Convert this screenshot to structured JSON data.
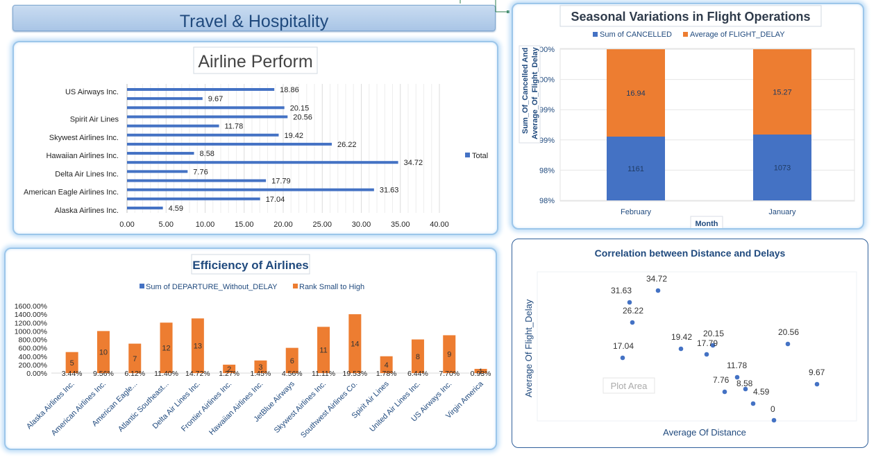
{
  "banner": {
    "title": "Travel & Hospitality"
  },
  "colors": {
    "blue": "#4472c4",
    "orange": "#ed7d31",
    "text": "#1f497d"
  },
  "charts": {
    "airline": {
      "title": "Airline Perform",
      "legend": "Total",
      "x_ticks": [
        "0.00",
        "5.00",
        "10.00",
        "15.00",
        "20.00",
        "25.00",
        "30.00",
        "35.00",
        "40.00"
      ],
      "labels": [
        "US Airways Inc.",
        "Spirit Air Lines",
        "Skywest Airlines Inc.",
        "Hawaiian Airlines Inc.",
        "Delta Air Lines Inc.",
        "American Eagle Airlines Inc.",
        "Alaska Airlines Inc."
      ]
    },
    "seasonal": {
      "title": "Seasonal Variations in Flight Operations",
      "legend_cancelled": "Sum of CANCELLED",
      "legend_delay": "Average of FLIGHT_DELAY",
      "y_ticks": [
        "100%",
        "100%",
        "99%",
        "99%",
        "98%",
        "98%"
      ],
      "y_title": "Sum_Of_Cancelled And Average_Of_Flight_Delay",
      "x_title": "Month"
    },
    "efficiency": {
      "title": "Efficiency of Airlines",
      "legend_departure": "Sum of DEPARTURE_Without_DELAY",
      "legend_rank": "Rank Small to High",
      "y_ticks": [
        "1600.00%",
        "1400.00%",
        "1200.00%",
        "1000.00%",
        "800.00%",
        "600.00%",
        "400.00%",
        "200.00%",
        "0.00%"
      ]
    },
    "correlation": {
      "title": "Correlation between Distance and Delays",
      "x_title": "Average Of Distance",
      "y_title": "Average Of Flight_Delay",
      "plot_area_label": "Plot Area"
    }
  },
  "chart_data": [
    {
      "type": "bar",
      "orientation": "horizontal",
      "title": "Airline Perform",
      "series": [
        {
          "name": "Total",
          "values": [
            18.86,
            9.67,
            20.15,
            20.56,
            11.78,
            19.42,
            26.22,
            8.58,
            34.72,
            7.76,
            17.79,
            31.63,
            17.04,
            4.59
          ]
        }
      ],
      "category_labels_visible": [
        "US Airways Inc.",
        "",
        "",
        "Spirit Air Lines",
        "",
        "Skywest Airlines Inc.",
        "",
        "Hawaiian Airlines Inc.",
        "",
        "Delta Air Lines Inc.",
        "",
        "American Eagle Airlines Inc.",
        "",
        "Alaska Airlines Inc."
      ],
      "xlim": [
        0,
        40
      ],
      "legend": "right"
    },
    {
      "type": "bar",
      "stacked": "percent",
      "title": "Seasonal Variations in Flight Operations",
      "categories": [
        "February",
        "January"
      ],
      "series": [
        {
          "name": "Sum of CANCELLED",
          "values": [
            1161,
            1073
          ]
        },
        {
          "name": "Average of FLIGHT_DELAY",
          "values": [
            16.94,
            15.27
          ]
        }
      ],
      "xlabel": "Month",
      "ylabel": "Sum_Of_Cancelled And Average_Of_Flight_Delay",
      "legend": "top"
    },
    {
      "type": "bar",
      "title": "Efficiency of Airlines",
      "categories": [
        "Alaska Airlines Inc.",
        "American Airlines Inc.",
        "American Eagle...",
        "Atlantic Southeast...",
        "Delta Air Lines Inc.",
        "Frontier Airlines Inc.",
        "Hawaiian Airlines Inc.",
        "JetBlue Airways",
        "Skywest Airlines Inc.",
        "Southwest Airlines Co.",
        "Spirit Air Lines",
        "United Air Lines Inc.",
        "US Airways Inc.",
        "Virgin America"
      ],
      "series": [
        {
          "name": "Sum of DEPARTURE_Without_DELAY",
          "values": [
            "3.44%",
            "9.56%",
            "6.12%",
            "11.40%",
            "14.72%",
            "1.27%",
            "1.45%",
            "4.56%",
            "11.11%",
            "19.53%",
            "1.78%",
            "6.44%",
            "7.70%",
            "0.93%"
          ]
        },
        {
          "name": "Rank Small to High",
          "values": [
            5,
            10,
            7,
            12,
            13,
            2,
            3,
            6,
            11,
            14,
            4,
            8,
            9,
            1
          ]
        }
      ],
      "ylim": [
        "0.00%",
        "1600.00%"
      ],
      "legend": "top"
    },
    {
      "type": "scatter",
      "title": "Correlation between Distance and Delays",
      "xlabel": "Average Of Distance",
      "ylabel": "Average Of Flight_Delay",
      "y_values_labeled": [
        31.63,
        34.72,
        26.22,
        17.04,
        19.42,
        17.79,
        20.15,
        20.56,
        11.78,
        8.58,
        7.76,
        4.59,
        9.67,
        0
      ],
      "x_values": "not printed"
    }
  ]
}
